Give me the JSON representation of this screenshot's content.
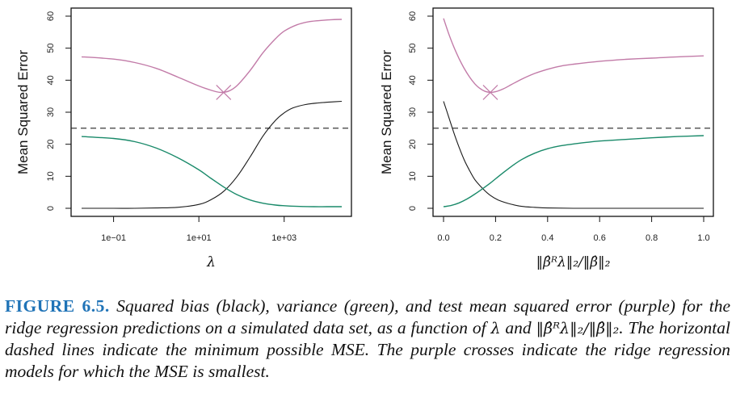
{
  "figure": {
    "label": "FIGURE 6.5.",
    "caption_part1": " Squared bias (black), variance (green), and test mean squared error (purple) for the ridge regression predictions on a simulated data set, as a function of ",
    "caption_lambda": "λ",
    "caption_and": " and ",
    "caption_norm": "‖β̂ᴿλ‖₂/‖β̂‖₂",
    "caption_part2": ". The horizontal dashed lines indicate the minimum possible MSE. The purple crosses indicate the ridge regression models for which the MSE is smallest."
  },
  "colors": {
    "bias": "#1a1a1a",
    "variance": "#1a8a6a",
    "mse": "#c27ba8",
    "dashed": "#222222",
    "caption_label": "#1f73b7"
  },
  "chart_data": [
    {
      "type": "line",
      "title": "",
      "xlabel": "λ",
      "ylabel": "Mean Squared Error",
      "xscale": "log10",
      "xlim_log10": [
        -1.75,
        4.35
      ],
      "ylim": [
        0,
        60
      ],
      "xticks": [
        {
          "value_log10": -1,
          "label": "1e−01"
        },
        {
          "value_log10": 1,
          "label": "1e+01"
        },
        {
          "value_log10": 3,
          "label": "1e+03"
        }
      ],
      "yticks": [
        {
          "value": 0,
          "label": "0"
        },
        {
          "value": 10,
          "label": "10"
        },
        {
          "value": 20,
          "label": "20"
        },
        {
          "value": 30,
          "label": "30"
        },
        {
          "value": 40,
          "label": "40"
        },
        {
          "value": 50,
          "label": "50"
        },
        {
          "value": 60,
          "label": "60"
        }
      ],
      "hline": {
        "value": 25,
        "style": "dashed",
        "label": "minimum possible MSE"
      },
      "series": [
        {
          "name": "Squared bias",
          "color_key": "bias",
          "x_log10": [
            -1.75,
            -1.0,
            -0.5,
            0.0,
            0.5,
            1.0,
            1.3,
            1.6,
            1.9,
            2.2,
            2.5,
            2.8,
            3.0,
            3.2,
            3.5,
            3.8,
            4.1,
            4.35
          ],
          "y": [
            0.0,
            0.0,
            0.0,
            0.1,
            0.3,
            1.2,
            2.8,
            5.5,
            10.0,
            16.0,
            22.5,
            27.5,
            29.8,
            31.3,
            32.4,
            32.9,
            33.2,
            33.4
          ]
        },
        {
          "name": "Variance",
          "color_key": "variance",
          "x_log10": [
            -1.75,
            -1.0,
            -0.5,
            0.0,
            0.5,
            1.0,
            1.3,
            1.6,
            1.9,
            2.2,
            2.5,
            2.8,
            3.0,
            3.3,
            3.7,
            4.0,
            4.35
          ],
          "y": [
            22.4,
            21.8,
            20.8,
            18.8,
            15.8,
            12.0,
            9.2,
            6.5,
            4.2,
            2.6,
            1.6,
            1.0,
            0.8,
            0.6,
            0.5,
            0.5,
            0.5
          ]
        },
        {
          "name": "Test MSE",
          "color_key": "mse",
          "x_log10": [
            -1.75,
            -1.0,
            -0.5,
            0.0,
            0.5,
            1.0,
            1.3,
            1.5,
            1.7,
            1.9,
            2.2,
            2.5,
            2.8,
            3.0,
            3.3,
            3.6,
            3.9,
            4.1,
            4.35
          ],
          "y": [
            47.3,
            46.6,
            45.5,
            43.7,
            41.0,
            38.2,
            36.8,
            36.2,
            36.6,
            38.4,
            43.0,
            48.5,
            53.0,
            55.3,
            57.3,
            58.3,
            58.7,
            58.9,
            59.0
          ]
        }
      ],
      "marker": {
        "name": "min MSE",
        "shape": "cross",
        "x_log10": 1.58,
        "y": 36.2
      }
    },
    {
      "type": "line",
      "title": "",
      "xlabel": "‖β̂ᴿλ‖₂/‖β̂‖₂",
      "ylabel": "Mean Squared Error",
      "xlim": [
        -0.04,
        1.04
      ],
      "ylim": [
        0,
        60
      ],
      "xticks": [
        {
          "value": 0.0,
          "label": "0.0"
        },
        {
          "value": 0.2,
          "label": "0.2"
        },
        {
          "value": 0.4,
          "label": "0.4"
        },
        {
          "value": 0.6,
          "label": "0.6"
        },
        {
          "value": 0.8,
          "label": "0.8"
        },
        {
          "value": 1.0,
          "label": "1.0"
        }
      ],
      "yticks": [
        {
          "value": 0,
          "label": "0"
        },
        {
          "value": 10,
          "label": "10"
        },
        {
          "value": 20,
          "label": "20"
        },
        {
          "value": 30,
          "label": "30"
        },
        {
          "value": 40,
          "label": "40"
        },
        {
          "value": 50,
          "label": "50"
        },
        {
          "value": 60,
          "label": "60"
        }
      ],
      "hline": {
        "value": 25,
        "style": "dashed",
        "label": "minimum possible MSE"
      },
      "series": [
        {
          "name": "Squared bias",
          "color_key": "bias",
          "x": [
            0.0,
            0.02,
            0.04,
            0.06,
            0.08,
            0.1,
            0.12,
            0.15,
            0.18,
            0.21,
            0.25,
            0.3,
            0.35,
            0.4,
            0.5,
            0.7,
            1.0
          ],
          "y": [
            33.4,
            28.5,
            23.5,
            19.0,
            15.0,
            11.8,
            9.0,
            6.2,
            4.0,
            2.6,
            1.5,
            0.6,
            0.3,
            0.1,
            0.0,
            0.0,
            0.0
          ]
        },
        {
          "name": "Variance",
          "color_key": "variance",
          "x": [
            0.0,
            0.03,
            0.06,
            0.09,
            0.12,
            0.15,
            0.18,
            0.22,
            0.26,
            0.3,
            0.35,
            0.4,
            0.45,
            0.5,
            0.6,
            0.7,
            0.8,
            0.9,
            1.0
          ],
          "y": [
            0.5,
            0.9,
            1.7,
            2.9,
            4.4,
            6.1,
            7.9,
            10.5,
            13.0,
            15.2,
            17.2,
            18.6,
            19.5,
            20.1,
            21.0,
            21.5,
            22.0,
            22.4,
            22.7
          ]
        },
        {
          "name": "Test MSE",
          "color_key": "mse",
          "x": [
            0.0,
            0.02,
            0.04,
            0.06,
            0.08,
            0.1,
            0.12,
            0.14,
            0.16,
            0.18,
            0.2,
            0.23,
            0.26,
            0.3,
            0.35,
            0.4,
            0.45,
            0.5,
            0.6,
            0.7,
            0.8,
            0.9,
            1.0
          ],
          "y": [
            59.3,
            54.5,
            50.3,
            46.7,
            43.6,
            41.0,
            38.9,
            37.4,
            36.5,
            36.2,
            36.4,
            37.3,
            38.6,
            40.3,
            42.1,
            43.4,
            44.4,
            45.0,
            45.9,
            46.5,
            46.9,
            47.3,
            47.6
          ]
        }
      ],
      "marker": {
        "name": "min MSE",
        "shape": "cross",
        "x": 0.18,
        "y": 36.2
      }
    }
  ]
}
